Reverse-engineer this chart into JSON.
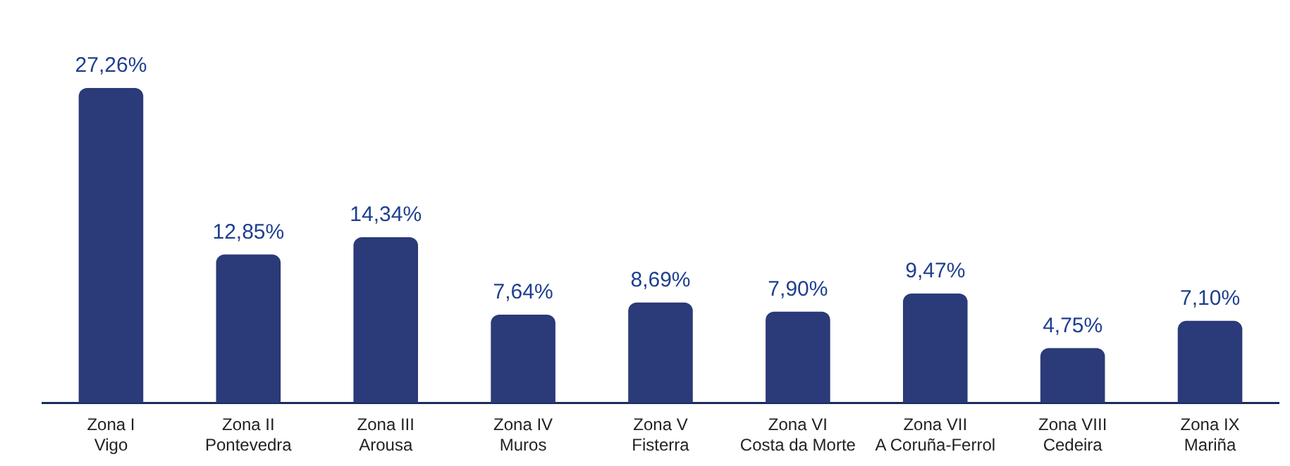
{
  "chart_data": {
    "type": "bar",
    "categories": [
      "Zona I\nVigo",
      "Zona II\nPontevedra",
      "Zona III\nArousa",
      "Zona IV\nMuros",
      "Zona V\nFisterra",
      "Zona VI\nCosta da Morte",
      "Zona VII\nA Coruña-Ferrol",
      "Zona VIII\nCedeira",
      "Zona IX\nMariña"
    ],
    "values": [
      27.26,
      12.85,
      14.34,
      7.64,
      8.69,
      7.9,
      9.47,
      4.75,
      7.1
    ],
    "value_labels": [
      "27,26%",
      "12,85%",
      "14,34%",
      "7,64%",
      "8,69%",
      "7,90%",
      "9,47%",
      "4,75%",
      "7,10%"
    ],
    "color": "#2b3a78",
    "grid": false,
    "legend": false,
    "tick_labels": "x"
  }
}
